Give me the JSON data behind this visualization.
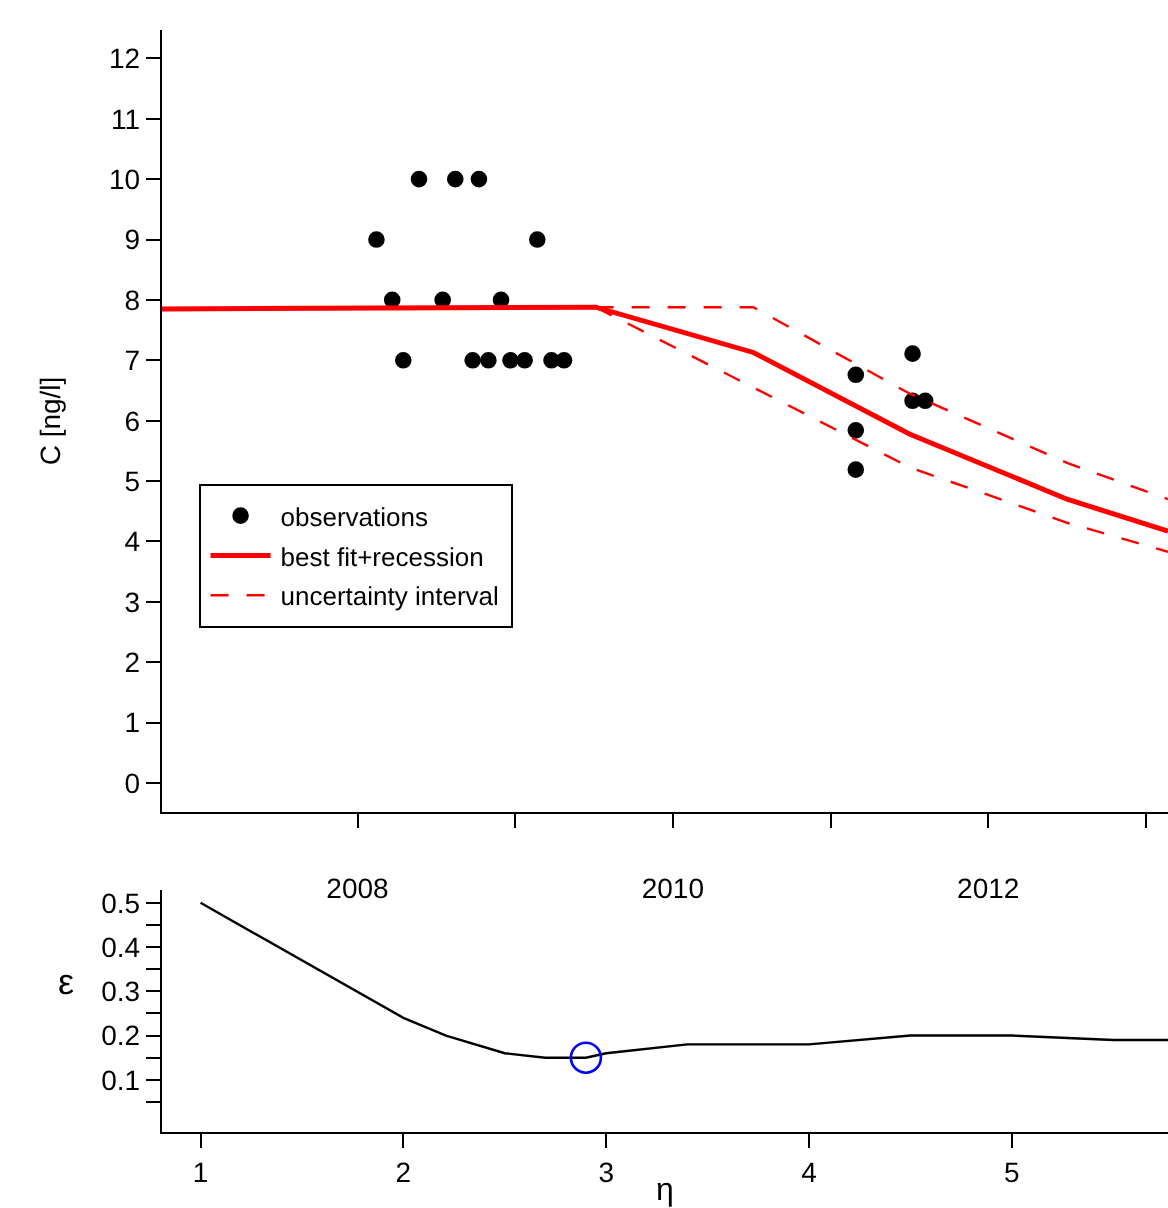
{
  "chart_data": [
    {
      "type": "scatter",
      "ylabel": "C [ng/l]",
      "xlim": [
        2006.76,
        2013.14
      ],
      "ylim": [
        -0.48,
        12.47
      ],
      "xticks": [
        2008,
        {
          "value": 2009,
          "label": null
        },
        2010,
        {
          "value": 2011,
          "label": null
        },
        2012,
        {
          "value": 2013,
          "label": null
        }
      ],
      "yticks": [
        0,
        1,
        2,
        3,
        4,
        5,
        6,
        7,
        8,
        9,
        10,
        11,
        12
      ],
      "grid": false,
      "legend": "left",
      "series": [
        {
          "name": "observations",
          "marker": "circle",
          "color": "#000000",
          "x": [
            2008.12,
            2008.22,
            2008.29,
            2008.39,
            2008.54,
            2008.62,
            2008.73,
            2008.77,
            2008.83,
            2008.91,
            2008.97,
            2009.06,
            2009.14,
            2009.23,
            2009.31,
            2011.16,
            2011.16,
            2011.16,
            2011.52,
            2011.52,
            2011.6
          ],
          "values": [
            9,
            8,
            7,
            10,
            8,
            10,
            7,
            10,
            7,
            8,
            7,
            7,
            9,
            7,
            7,
            6.76,
            5.84,
            5.19,
            7.11,
            6.33,
            6.33
          ]
        },
        {
          "name": "best fit+recession",
          "type": "line",
          "line_style": "solid",
          "color": "#ff0000",
          "x": [
            2006.76,
            2009.51,
            2010.51,
            2011.5,
            2012.5,
            2013.14
          ],
          "values": [
            7.85,
            7.88,
            7.13,
            5.78,
            4.7,
            4.17
          ]
        },
        {
          "name": "uncertainty interval",
          "type": "line",
          "line_style": "dashed",
          "color": "#ff0000",
          "x": [
            2009.51,
            2010.51,
            2011.5,
            2012.5,
            2013.14
          ],
          "values": [
            7.88,
            7.88,
            6.45,
            5.3,
            4.7
          ]
        },
        {
          "type": "line",
          "line_style": "dashed",
          "color": "#ff0000",
          "x": [
            2009.51,
            2010.51,
            2011.5,
            2012.5,
            2013.14
          ],
          "values": [
            7.88,
            6.55,
            5.23,
            4.31,
            3.83
          ]
        }
      ]
    },
    {
      "type": "line",
      "xlabel": "η",
      "ylabel": "ε",
      "xlim": [
        0.81,
        5.77
      ],
      "ylim": [
        -0.018,
        0.529
      ],
      "xticks": [
        1,
        2,
        3,
        4,
        5
      ],
      "yticks": [
        {
          "value": 0.05,
          "label": null
        },
        0.1,
        {
          "value": 0.15,
          "label": null
        },
        0.2,
        {
          "value": 0.25,
          "label": null
        },
        0.3,
        {
          "value": 0.35,
          "label": null
        },
        0.4,
        {
          "value": 0.45,
          "label": null
        },
        0.5
      ],
      "grid": false,
      "series": [
        {
          "color": "#000000",
          "x": [
            1,
            2,
            2.21,
            2.5,
            2.7,
            2.9,
            3.0,
            3.4,
            4,
            4.5,
            5,
            5.5,
            5.77
          ],
          "values": [
            0.5,
            0.24,
            0.2,
            0.16,
            0.15,
            0.15,
            0.16,
            0.18,
            0.18,
            0.2,
            0.2,
            0.19,
            0.19
          ]
        },
        {
          "type": "scatter",
          "marker": "circle-open",
          "color": "#0000ff",
          "x": [
            2.9
          ],
          "values": [
            0.15
          ]
        }
      ]
    }
  ]
}
